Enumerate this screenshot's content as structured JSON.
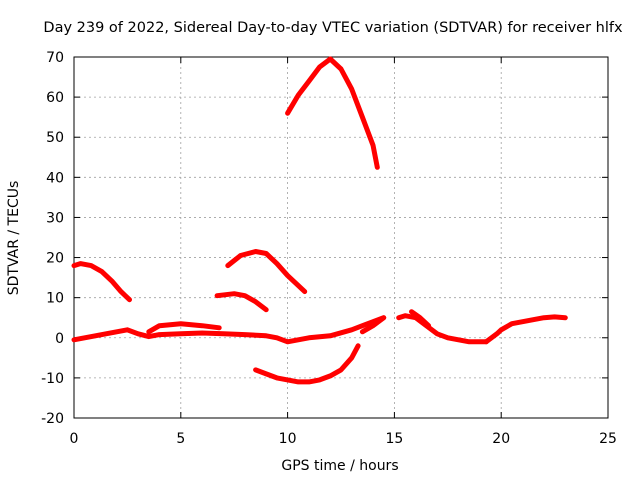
{
  "chart_data": {
    "type": "line",
    "title": "Day 239 of 2022, Sidereal Day-to-day VTEC variation (SDTVAR) for receiver hlfx",
    "xlabel": "GPS time / hours",
    "ylabel": "SDTVAR / TECUs",
    "xlim": [
      0,
      25
    ],
    "ylim": [
      -20,
      70
    ],
    "xticks": [
      0,
      5,
      10,
      15,
      20,
      25
    ],
    "yticks": [
      -20,
      -10,
      0,
      10,
      20,
      30,
      40,
      50,
      60,
      70
    ],
    "grid": true,
    "color": "#ff0000",
    "series": [
      {
        "name": "seg1",
        "x": [
          0,
          0.3,
          0.8,
          1.3,
          1.8,
          2.2,
          2.6
        ],
        "y": [
          18,
          18.5,
          18,
          16.5,
          14,
          11.5,
          9.5
        ]
      },
      {
        "name": "seg2",
        "x": [
          0,
          0.5,
          1,
          1.5,
          2,
          2.5,
          3,
          3.5,
          4,
          5,
          6,
          7,
          8,
          9,
          9.5,
          10,
          10.5,
          11,
          12,
          13,
          13.5,
          14,
          14.5
        ],
        "y": [
          -0.5,
          0,
          0.5,
          1,
          1.5,
          2,
          1,
          0.3,
          0.8,
          1,
          1.2,
          1,
          0.8,
          0.5,
          0,
          -1,
          -0.5,
          0,
          0.5,
          2,
          3,
          4,
          5
        ]
      },
      {
        "name": "seg3",
        "x": [
          3.5,
          4,
          5,
          6,
          6.8
        ],
        "y": [
          1.5,
          3,
          3.5,
          3,
          2.5
        ]
      },
      {
        "name": "seg4",
        "x": [
          6.7,
          7.5,
          8,
          8.5,
          9.0
        ],
        "y": [
          10.5,
          11,
          10.5,
          9,
          7
        ]
      },
      {
        "name": "seg5",
        "x": [
          7.2,
          7.8,
          8.5,
          9,
          9.5,
          10,
          10.5,
          10.8
        ],
        "y": [
          18,
          20.5,
          21.5,
          21,
          18.5,
          15.5,
          13,
          11.5
        ]
      },
      {
        "name": "seg6",
        "x": [
          8.5,
          9,
          9.5,
          10,
          10.5,
          11,
          11.5,
          12,
          12.5,
          13,
          13.3
        ],
        "y": [
          -8,
          -9,
          -10,
          -10.5,
          -11,
          -11,
          -10.5,
          -9.5,
          -8,
          -5,
          -2
        ]
      },
      {
        "name": "seg7",
        "x": [
          10,
          10.5,
          11,
          11.5,
          12,
          12.5,
          13,
          13.5,
          14,
          14.2
        ],
        "y": [
          56,
          60.5,
          64,
          67.5,
          69.5,
          67,
          62,
          55,
          48,
          42.5
        ]
      },
      {
        "name": "seg8",
        "x": [
          13.5,
          14,
          14.5
        ],
        "y": [
          1.5,
          3,
          5
        ]
      },
      {
        "name": "seg9",
        "x": [
          15.2,
          15.5,
          16,
          16.5,
          17,
          17.5,
          18,
          18.5,
          19,
          19.3
        ],
        "y": [
          5,
          5.5,
          5,
          3,
          1,
          0,
          -0.5,
          -1,
          -1,
          -1
        ]
      },
      {
        "name": "seg10",
        "x": [
          15.8,
          16.2,
          16.6
        ],
        "y": [
          6.5,
          5,
          3
        ]
      },
      {
        "name": "seg11",
        "x": [
          19.3,
          19.8,
          20,
          20.5,
          21,
          21.5,
          22,
          22.5,
          23
        ],
        "y": [
          -1,
          1,
          2,
          3.5,
          4,
          4.5,
          5,
          5.2,
          5
        ]
      }
    ]
  }
}
